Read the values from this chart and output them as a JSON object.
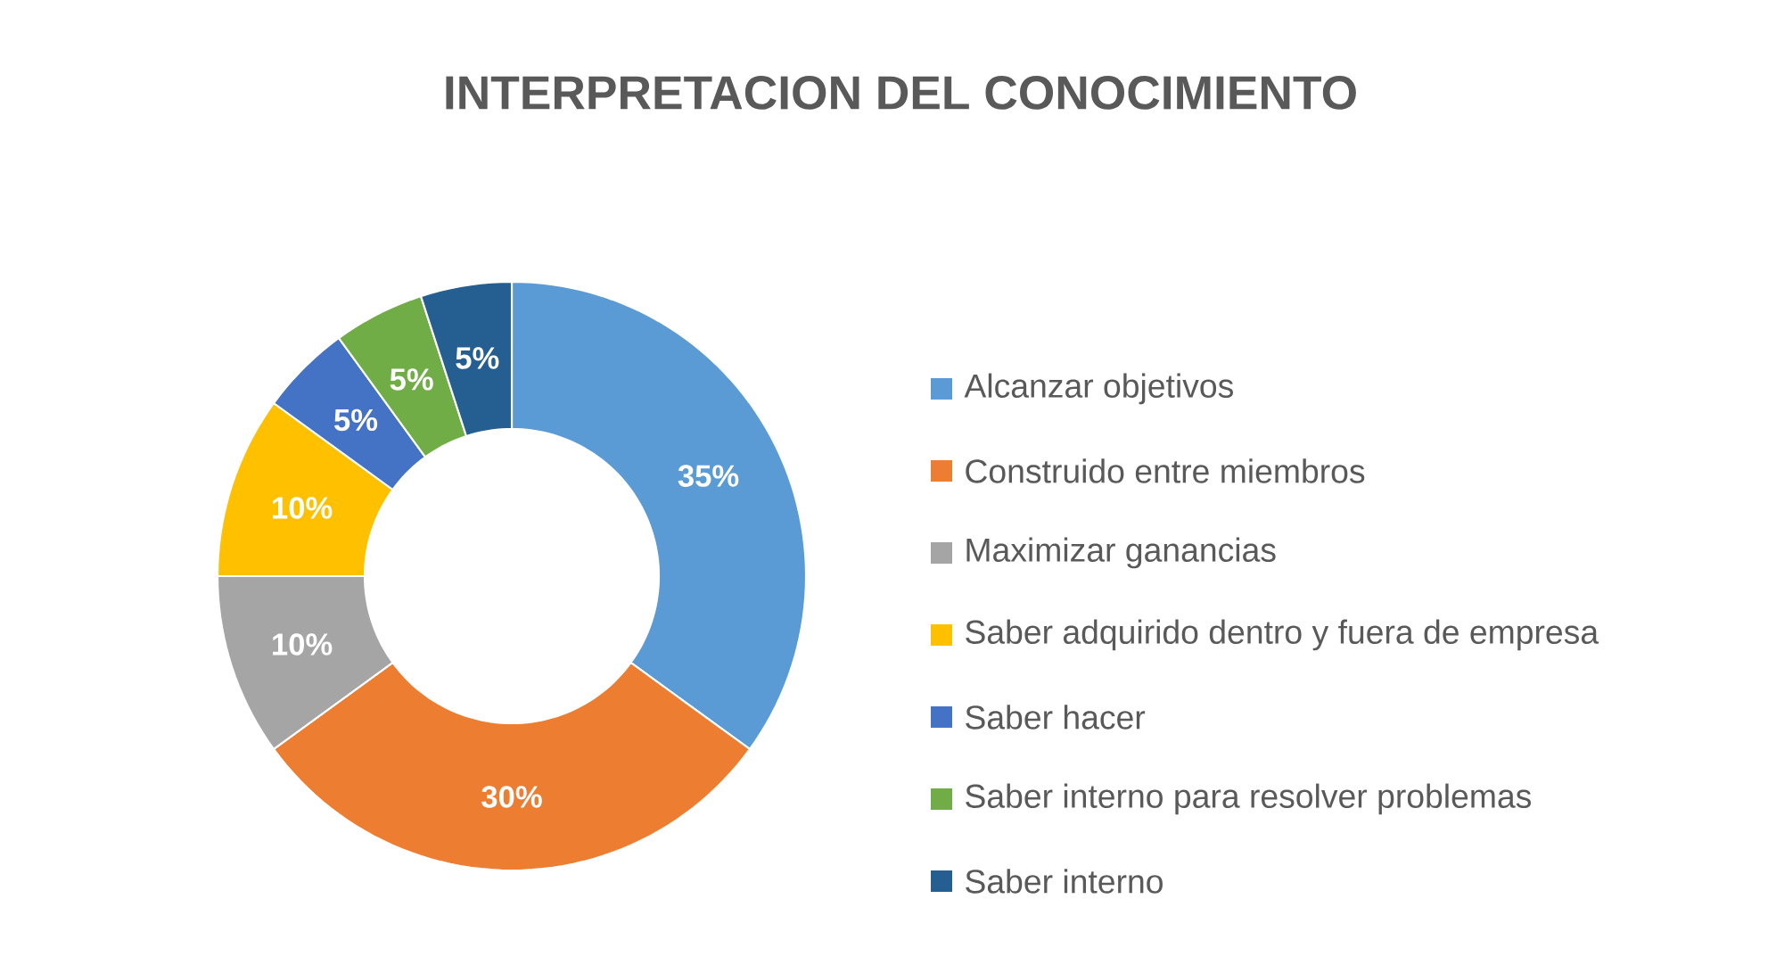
{
  "chart_data": {
    "type": "donut",
    "title": "INTERPRETACION DEL CONOCIMIENTO",
    "categories": [
      "Alcanzar objetivos",
      "Construido entre miembros",
      "Maximizar ganancias",
      "Saber adquirido dentro y fuera de empresa",
      "Saber hacer",
      "Saber interno para resolver problemas",
      "Saber interno"
    ],
    "values": [
      35,
      30,
      10,
      10,
      5,
      5,
      5
    ],
    "value_labels": [
      "35%",
      "30%",
      "10%",
      "10%",
      "5%",
      "5%",
      "5%"
    ],
    "colors": [
      "#5b9bd5",
      "#ed7d31",
      "#a5a5a5",
      "#ffc000",
      "#4472c4",
      "#70ad47",
      "#255e91"
    ],
    "legend": "right"
  }
}
